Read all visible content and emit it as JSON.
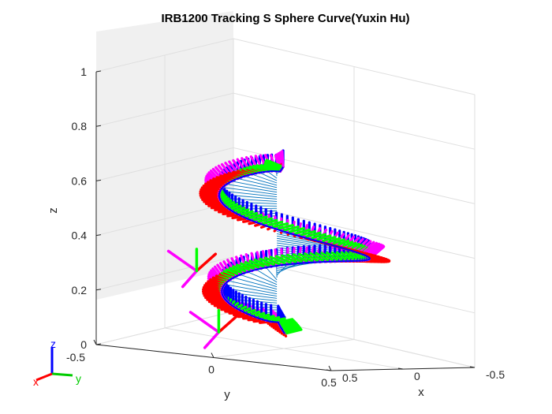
{
  "chart_data": {
    "type": "line3d",
    "title": "IRB1200 Tracking S Sphere Curve(Yuxin Hu)",
    "xlabel": "x",
    "ylabel": "y",
    "zlabel": "z",
    "xlim": [
      -0.5,
      0.5
    ],
    "ylim": [
      -0.5,
      0.5
    ],
    "zlim": [
      0,
      1
    ],
    "x_ticks": [
      "-0.5",
      "0",
      "0.5"
    ],
    "y_ticks": [
      "-0.5",
      "0",
      "0.5"
    ],
    "z_ticks": [
      "0",
      "0.2",
      "0.4",
      "0.6",
      "0.8",
      "1"
    ],
    "grid": true,
    "colors": {
      "frame_x": "#ff0000",
      "frame_y": "#00ff00",
      "frame_z": "#0000ff",
      "tool": "#ff00ff",
      "link": "#0072bd",
      "curve": "#0000ff"
    },
    "curve": {
      "description_shape": "S-shaped curve on a sphere",
      "center": [
        0,
        0,
        0.37
      ],
      "radius": 0.27,
      "z_range": [
        0.06,
        0.66
      ],
      "turns": 1.5,
      "samples": 140
    },
    "base_frame": {
      "labels": {
        "x": "x",
        "y": "y",
        "z": "z"
      }
    }
  }
}
